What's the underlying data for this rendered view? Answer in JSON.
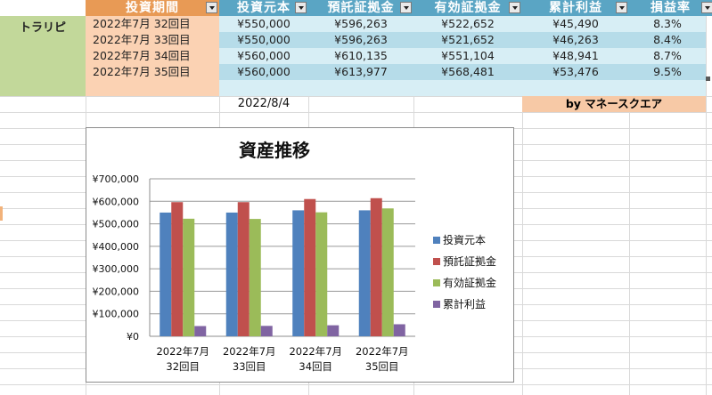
{
  "sheet": {
    "headers": [
      "投資期間",
      "投資元本",
      "預託証拠金",
      "有効証拠金",
      "累計利益",
      "損益率"
    ],
    "name_cell": "トラリピ",
    "rows": [
      {
        "period": "2022年7月  32回目",
        "principal": "¥550,000",
        "deposit": "¥596,263",
        "effective": "¥522,652",
        "profit": "¥45,490",
        "rate": "8.3%"
      },
      {
        "period": "2022年7月  33回目",
        "principal": "¥550,000",
        "deposit": "¥596,263",
        "effective": "¥521,652",
        "profit": "¥46,263",
        "rate": "8.4%"
      },
      {
        "period": "2022年7月  34回目",
        "principal": "¥560,000",
        "deposit": "¥610,135",
        "effective": "¥551,104",
        "profit": "¥48,941",
        "rate": "8.7%"
      },
      {
        "period": "2022年7月  35回目",
        "principal": "¥560,000",
        "deposit": "¥613,977",
        "effective": "¥568,481",
        "profit": "¥53,476",
        "rate": "9.5%"
      }
    ],
    "date": "2022/8/4",
    "credit": "by マネースクエア"
  },
  "colors": {
    "header_orange": "#e89a55",
    "header_blue": "#5aa5c4",
    "name_green": "#c2d89a",
    "peach": "#fbd2b3"
  },
  "chart_data": {
    "type": "bar",
    "title": "資産推移",
    "categories": [
      [
        "2022年7月",
        "32回目"
      ],
      [
        "2022年7月",
        "33回目"
      ],
      [
        "2022年7月",
        "34回目"
      ],
      [
        "2022年7月",
        "35回目"
      ]
    ],
    "series": [
      {
        "name": "投資元本",
        "color": "#4f81bd",
        "values": [
          550000,
          550000,
          560000,
          560000
        ]
      },
      {
        "name": "預託証拠金",
        "color": "#c0504d",
        "values": [
          596263,
          596263,
          610135,
          613977
        ]
      },
      {
        "name": "有効証拠金",
        "color": "#9bbb59",
        "values": [
          522652,
          521652,
          551104,
          568481
        ]
      },
      {
        "name": "累計利益",
        "color": "#8064a2",
        "values": [
          45490,
          46263,
          48941,
          53476
        ]
      }
    ],
    "ylim": [
      0,
      700000
    ],
    "yticks": [
      "¥0",
      "¥100,000",
      "¥200,000",
      "¥300,000",
      "¥400,000",
      "¥500,000",
      "¥600,000",
      "¥700,000"
    ],
    "grid": true,
    "legend": "right"
  }
}
